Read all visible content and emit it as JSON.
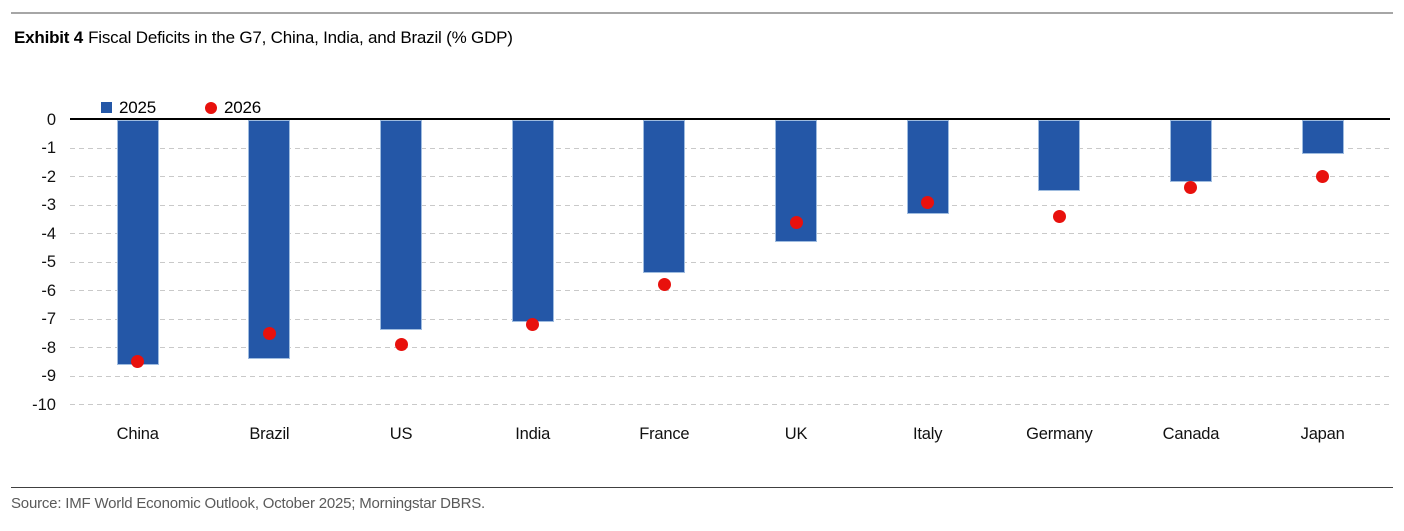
{
  "header": {
    "title_prefix": "Exhibit 4",
    "title_rest": "Fiscal Deficits in the G7, China, India, and Brazil (% GDP)"
  },
  "legend": {
    "items": [
      {
        "label": "2025",
        "marker": "blue-square"
      },
      {
        "label": "2026",
        "marker": "red-circle"
      }
    ]
  },
  "footer": {
    "source": "Source: IMF World Economic Outlook, October 2025; Morningstar DBRS."
  },
  "colors": {
    "bar_2025": "#2457a7",
    "bar_border": "#9fbcdf",
    "dot_2026": "#e8110d",
    "gridline": "#c9c9c9",
    "zero_axis": "#000000",
    "top_rule": "#a6a6a6",
    "bottom_rule": "#404040",
    "text": "#1a1a1a",
    "source_text": "#5a5a5a"
  },
  "chart_data": {
    "type": "bar",
    "title": "Fiscal Deficits in the G7, China, India, and Brazil (% GDP)",
    "categories": [
      "China",
      "Brazil",
      "US",
      "India",
      "France",
      "UK",
      "Italy",
      "Germany",
      "Canada",
      "Japan"
    ],
    "series": [
      {
        "name": "2025",
        "type": "bar",
        "values": [
          -8.6,
          -8.4,
          -7.4,
          -7.1,
          -5.4,
          -4.3,
          -3.3,
          -2.5,
          -2.2,
          -1.2
        ]
      },
      {
        "name": "2026",
        "type": "scatter",
        "values": [
          -8.5,
          -7.5,
          -7.9,
          -7.2,
          -5.8,
          -3.6,
          -2.9,
          -3.4,
          -2.4,
          -2.0
        ]
      }
    ],
    "ylabel": "% GDP",
    "ylim": [
      -10,
      0
    ],
    "yticks": [
      0,
      -1,
      -2,
      -3,
      -4,
      -5,
      -6,
      -7,
      -8,
      -9,
      -10
    ],
    "grid": "horizontal-dashed",
    "legend_position": "top-left-inside-plot"
  }
}
